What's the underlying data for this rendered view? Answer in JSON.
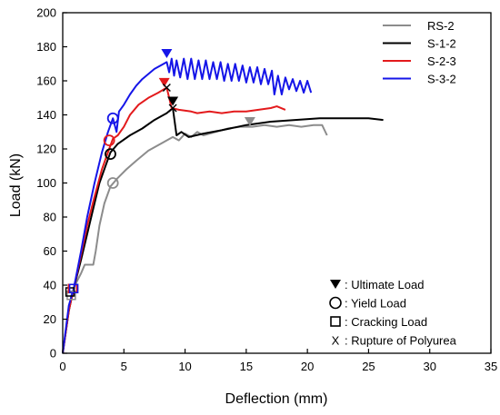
{
  "chart_data": {
    "type": "line",
    "title": "",
    "xlabel": "Deflection (mm)",
    "ylabel": "Load (kN)",
    "xlim": [
      0,
      35
    ],
    "ylim": [
      0,
      200
    ],
    "xticks": [
      0,
      5,
      10,
      15,
      20,
      25,
      30,
      35
    ],
    "yticks": [
      0,
      20,
      40,
      60,
      80,
      100,
      120,
      140,
      160,
      180,
      200
    ],
    "grid": false,
    "legend_position": "top-right",
    "series": [
      {
        "name": "RS-2",
        "color": "#8c8c8c",
        "points": [
          [
            0,
            0
          ],
          [
            0.4,
            20
          ],
          [
            0.7,
            34
          ],
          [
            1.0,
            40
          ],
          [
            1.5,
            47
          ],
          [
            1.8,
            52
          ],
          [
            2.5,
            52
          ],
          [
            2.7,
            60
          ],
          [
            3.0,
            75
          ],
          [
            3.4,
            88
          ],
          [
            3.9,
            98
          ],
          [
            4.5,
            103
          ],
          [
            5.2,
            108
          ],
          [
            6.0,
            113
          ],
          [
            7.0,
            119
          ],
          [
            8.0,
            123
          ],
          [
            9.0,
            127
          ],
          [
            9.5,
            125
          ],
          [
            10.0,
            129
          ],
          [
            10.5,
            127
          ],
          [
            11.0,
            130
          ],
          [
            11.5,
            128
          ],
          [
            12.5,
            130
          ],
          [
            13.5,
            132
          ],
          [
            14.5,
            133
          ],
          [
            15.5,
            133
          ],
          [
            16.5,
            134
          ],
          [
            17.5,
            133
          ],
          [
            18.5,
            134
          ],
          [
            19.5,
            133
          ],
          [
            20.5,
            134
          ],
          [
            21.2,
            134
          ],
          [
            21.6,
            128
          ]
        ]
      },
      {
        "name": "S-1-2",
        "color": "#000000",
        "points": [
          [
            0,
            0
          ],
          [
            0.5,
            25
          ],
          [
            0.9,
            38
          ],
          [
            1.5,
            55
          ],
          [
            2.0,
            70
          ],
          [
            2.5,
            85
          ],
          [
            3.0,
            100
          ],
          [
            3.5,
            110
          ],
          [
            3.9,
            118
          ],
          [
            4.5,
            123
          ],
          [
            5.5,
            128
          ],
          [
            6.5,
            132
          ],
          [
            7.5,
            137
          ],
          [
            8.5,
            141
          ],
          [
            9.0,
            144
          ],
          [
            9.3,
            128
          ],
          [
            9.7,
            130
          ],
          [
            10.3,
            127
          ],
          [
            11.5,
            129
          ],
          [
            13.0,
            131
          ],
          [
            15.0,
            134
          ],
          [
            17.0,
            136
          ],
          [
            19.0,
            137
          ],
          [
            21.0,
            138
          ],
          [
            23.0,
            138
          ],
          [
            25.0,
            138
          ],
          [
            26.2,
            137
          ]
        ]
      },
      {
        "name": "S-2-3",
        "color": "#e31a1c",
        "points": [
          [
            0,
            0
          ],
          [
            0.5,
            25
          ],
          [
            0.9,
            38
          ],
          [
            1.5,
            58
          ],
          [
            2.0,
            75
          ],
          [
            2.6,
            92
          ],
          [
            3.2,
            108
          ],
          [
            3.8,
            120
          ],
          [
            4.1,
            126
          ],
          [
            4.5,
            128
          ],
          [
            5.0,
            133
          ],
          [
            5.5,
            140
          ],
          [
            6.2,
            146
          ],
          [
            7.0,
            150
          ],
          [
            7.8,
            153
          ],
          [
            8.5,
            156
          ],
          [
            8.9,
            144
          ],
          [
            9.5,
            143
          ],
          [
            10.5,
            142
          ],
          [
            11.0,
            141
          ],
          [
            12.0,
            142
          ],
          [
            13.0,
            141
          ],
          [
            14.0,
            142
          ],
          [
            15.0,
            142
          ],
          [
            16.0,
            143
          ],
          [
            17.0,
            144
          ],
          [
            17.5,
            145
          ],
          [
            18.2,
            143
          ]
        ]
      },
      {
        "name": "S-3-2",
        "color": "#1515e8",
        "points": [
          [
            0,
            0
          ],
          [
            0.5,
            28
          ],
          [
            0.9,
            38
          ],
          [
            1.5,
            60
          ],
          [
            2.0,
            80
          ],
          [
            2.6,
            100
          ],
          [
            3.2,
            118
          ],
          [
            3.7,
            130
          ],
          [
            4.1,
            138
          ],
          [
            4.4,
            130
          ],
          [
            4.6,
            142
          ],
          [
            5.0,
            146
          ],
          [
            5.5,
            152
          ],
          [
            6.0,
            157
          ],
          [
            6.5,
            161
          ],
          [
            7.0,
            164
          ],
          [
            7.5,
            167
          ],
          [
            8.0,
            169
          ],
          [
            8.5,
            171
          ],
          [
            8.7,
            165
          ],
          [
            8.9,
            173
          ],
          [
            9.1,
            163
          ],
          [
            9.3,
            172
          ],
          [
            9.6,
            162
          ],
          [
            9.9,
            173
          ],
          [
            10.2,
            161
          ],
          [
            10.5,
            173
          ],
          [
            10.8,
            161
          ],
          [
            11.1,
            172
          ],
          [
            11.4,
            161
          ],
          [
            11.7,
            172
          ],
          [
            12.0,
            161
          ],
          [
            12.3,
            171
          ],
          [
            12.6,
            161
          ],
          [
            12.9,
            171
          ],
          [
            13.2,
            160
          ],
          [
            13.5,
            170
          ],
          [
            13.8,
            160
          ],
          [
            14.1,
            170
          ],
          [
            14.4,
            160
          ],
          [
            14.7,
            169
          ],
          [
            15.0,
            159
          ],
          [
            15.3,
            168
          ],
          [
            15.6,
            159
          ],
          [
            15.9,
            168
          ],
          [
            16.2,
            158
          ],
          [
            16.5,
            167
          ],
          [
            16.8,
            158
          ],
          [
            17.1,
            166
          ],
          [
            17.3,
            152
          ],
          [
            17.6,
            163
          ],
          [
            17.9,
            152
          ],
          [
            18.2,
            162
          ],
          [
            18.5,
            155
          ],
          [
            18.8,
            161
          ],
          [
            19.1,
            154
          ],
          [
            19.4,
            160
          ],
          [
            19.7,
            153
          ],
          [
            20.0,
            160
          ],
          [
            20.3,
            153
          ]
        ]
      }
    ],
    "markers": {
      "ultimate": [
        {
          "series": "RS-2",
          "x": 15.3,
          "y": 136
        },
        {
          "series": "S-1-2",
          "x": 9.0,
          "y": 148
        },
        {
          "series": "S-2-3",
          "x": 8.3,
          "y": 159
        },
        {
          "series": "S-3-2",
          "x": 8.5,
          "y": 176
        }
      ],
      "yield": [
        {
          "series": "RS-2",
          "x": 4.1,
          "y": 100
        },
        {
          "series": "S-1-2",
          "x": 3.9,
          "y": 117
        },
        {
          "series": "S-2-3",
          "x": 3.8,
          "y": 125
        },
        {
          "series": "S-3-2",
          "x": 4.1,
          "y": 138
        }
      ],
      "cracking": [
        {
          "series": "RS-2",
          "x": 0.7,
          "y": 34
        },
        {
          "series": "S-1-2",
          "x": 0.6,
          "y": 36
        },
        {
          "series": "S-2-3",
          "x": 0.8,
          "y": 38
        },
        {
          "series": "S-3-2",
          "x": 0.9,
          "y": 38
        }
      ],
      "rupture": [
        {
          "series": "S-1-2",
          "x": 9.0,
          "y": 144
        },
        {
          "series": "S-2-3",
          "x": 8.5,
          "y": 156
        }
      ]
    },
    "annotations": [
      {
        "symbol": "▼",
        "text": ": Ultimate Load"
      },
      {
        "symbol": "○",
        "text": ": Yield Load"
      },
      {
        "symbol": "□",
        "text": ": Cracking Load"
      },
      {
        "symbol": "X",
        "text": ": Rupture of Polyurea"
      }
    ]
  }
}
